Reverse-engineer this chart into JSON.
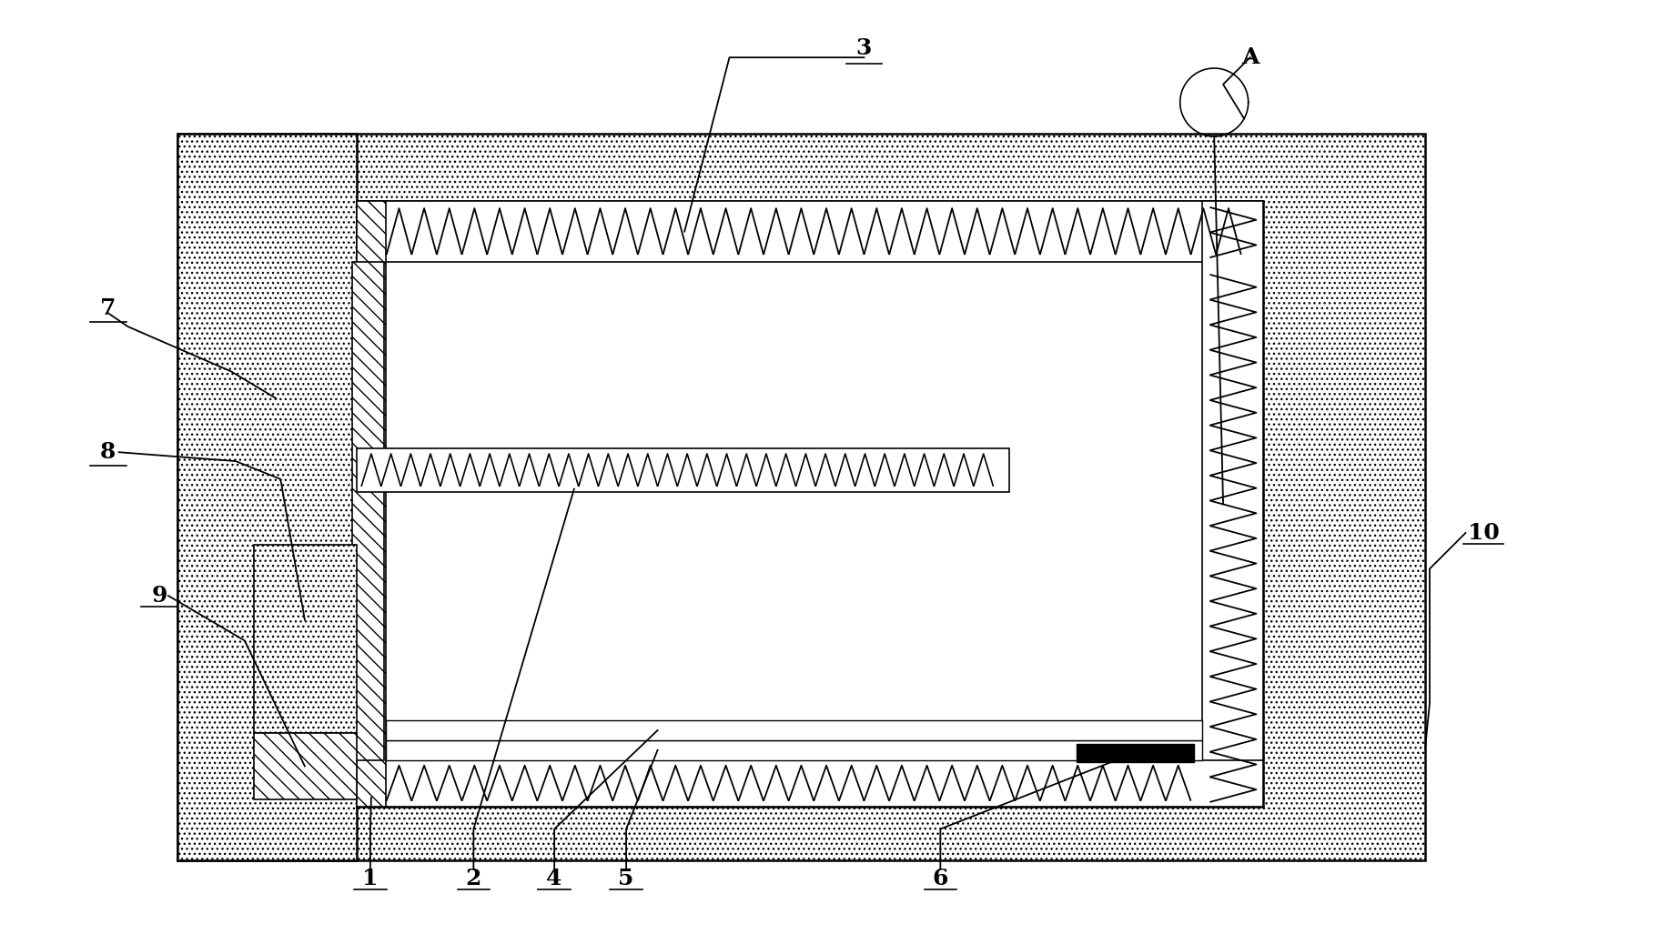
{
  "fig_width": 18.23,
  "fig_height": 10.27,
  "bg_color": "#ffffff",
  "lw_main": 1.8,
  "lw_thin": 1.2,
  "label_fs": 18,
  "dot_color": "#888888",
  "hatch_color": "#444444"
}
